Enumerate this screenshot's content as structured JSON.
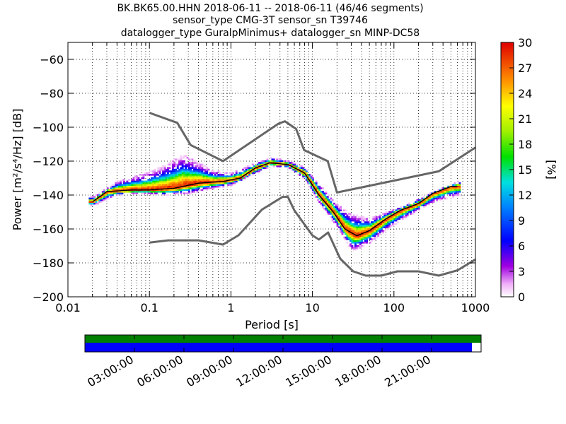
{
  "title_lines": [
    "BK.BK65.00.HHN   2018-06-11 -- 2018-06-11  (46/46 segments)",
    "sensor_type CMG-3T sensor_sn T39746",
    "datalogger_type GuralpMinimus+ datalogger_sn MINP-DC58"
  ],
  "chart_data": {
    "type": "heatmap",
    "xlabel": "Period [s]",
    "ylabel": "Power [m²/s⁴/Hz] [dB]",
    "x_scale": "log",
    "xlim": [
      0.01,
      1000
    ],
    "ylim": [
      -200,
      -50
    ],
    "x_ticks": [
      {
        "value": 0.01,
        "label": "0.01"
      },
      {
        "value": 0.1,
        "label": "0.1"
      },
      {
        "value": 1,
        "label": "1"
      },
      {
        "value": 10,
        "label": "10"
      },
      {
        "value": 100,
        "label": "100"
      },
      {
        "value": 1000,
        "label": "1000"
      }
    ],
    "y_ticks": [
      {
        "value": -60,
        "label": "−60"
      },
      {
        "value": -80,
        "label": "−80"
      },
      {
        "value": -100,
        "label": "−100"
      },
      {
        "value": -120,
        "label": "−120"
      },
      {
        "value": -140,
        "label": "−140"
      },
      {
        "value": -160,
        "label": "−160"
      },
      {
        "value": -180,
        "label": "−180"
      },
      {
        "value": -200,
        "label": "−200"
      }
    ],
    "grid": true,
    "colorbar": {
      "label": "[%]",
      "range": [
        0,
        30
      ],
      "ticks": [
        0,
        3,
        6,
        9,
        12,
        15,
        18,
        21,
        24,
        27,
        30
      ]
    },
    "noise_models": [
      {
        "name": "NHNM",
        "points": [
          [
            0.1,
            -91.5
          ],
          [
            0.22,
            -97.4
          ],
          [
            0.32,
            -110.5
          ],
          [
            0.8,
            -120
          ],
          [
            3.8,
            -98
          ],
          [
            4.6,
            -96.5
          ],
          [
            6.3,
            -101
          ],
          [
            7.9,
            -113.5
          ],
          [
            15.4,
            -120
          ],
          [
            20,
            -138.5
          ],
          [
            354.8,
            -126
          ],
          [
            1000,
            -112
          ]
        ]
      },
      {
        "name": "NLNM",
        "points": [
          [
            0.1,
            -168
          ],
          [
            0.17,
            -166.7
          ],
          [
            0.4,
            -166.7
          ],
          [
            0.8,
            -169.2
          ],
          [
            1.24,
            -163.7
          ],
          [
            2.4,
            -148.6
          ],
          [
            4.3,
            -141.1
          ],
          [
            5.0,
            -141.1
          ],
          [
            6.0,
            -149
          ],
          [
            10,
            -163.8
          ],
          [
            12,
            -166.2
          ],
          [
            15.6,
            -162.1
          ],
          [
            21.9,
            -177.5
          ],
          [
            31.6,
            -185
          ],
          [
            45,
            -187.5
          ],
          [
            70,
            -187.5
          ],
          [
            110,
            -185
          ],
          [
            200,
            -185
          ],
          [
            354.8,
            -187.5
          ],
          [
            600,
            -184.4
          ],
          [
            1000,
            -178
          ]
        ]
      }
    ],
    "psd_bands": [
      {
        "name": "mode",
        "points": [
          [
            0.02,
            -144
          ],
          [
            0.03,
            -138
          ],
          [
            0.06,
            -137
          ],
          [
            0.1,
            -137
          ],
          [
            0.2,
            -136
          ],
          [
            0.4,
            -133
          ],
          [
            0.8,
            -132
          ],
          [
            1.3,
            -130
          ],
          [
            2,
            -124
          ],
          [
            3,
            -121
          ],
          [
            5,
            -122
          ],
          [
            8,
            -127
          ],
          [
            12,
            -140
          ],
          [
            18,
            -150
          ],
          [
            25,
            -160
          ],
          [
            35,
            -164
          ],
          [
            50,
            -161
          ],
          [
            80,
            -154
          ],
          [
            120,
            -149
          ],
          [
            200,
            -145
          ],
          [
            300,
            -139
          ],
          [
            500,
            -135
          ],
          [
            600,
            -135
          ]
        ]
      },
      {
        "name": "upper",
        "points": [
          [
            0.02,
            -141
          ],
          [
            0.04,
            -132
          ],
          [
            0.08,
            -128
          ],
          [
            0.15,
            -123
          ],
          [
            0.25,
            -117
          ],
          [
            0.35,
            -120
          ],
          [
            0.6,
            -126
          ],
          [
            1,
            -127
          ],
          [
            2,
            -121
          ],
          [
            3,
            -118
          ],
          [
            5,
            -120
          ],
          [
            8,
            -124
          ],
          [
            12,
            -134
          ],
          [
            20,
            -146
          ],
          [
            30,
            -152
          ],
          [
            50,
            -154
          ],
          [
            80,
            -150
          ],
          [
            150,
            -145
          ],
          [
            300,
            -138
          ],
          [
            600,
            -132
          ]
        ]
      },
      {
        "name": "lower",
        "points": [
          [
            0.02,
            -146
          ],
          [
            0.04,
            -140
          ],
          [
            0.08,
            -139
          ],
          [
            0.15,
            -140
          ],
          [
            0.3,
            -139
          ],
          [
            0.6,
            -136
          ],
          [
            1,
            -134
          ],
          [
            2,
            -127
          ],
          [
            3,
            -123
          ],
          [
            5,
            -124
          ],
          [
            8,
            -131
          ],
          [
            12,
            -145
          ],
          [
            20,
            -159
          ],
          [
            30,
            -173
          ],
          [
            50,
            -168
          ],
          [
            80,
            -160
          ],
          [
            150,
            -152
          ],
          [
            300,
            -144
          ],
          [
            600,
            -140
          ]
        ]
      }
    ],
    "coverage_bar": {
      "type": "timeline",
      "time_labels": [
        "03:00:00",
        "06:00:00",
        "09:00:00",
        "12:00:00",
        "15:00:00",
        "18:00:00",
        "21:00:00"
      ],
      "data_coverage_fraction": 1.0,
      "psd_coverage_fraction": 0.977,
      "colors": {
        "data": "#008000",
        "psd": "#0000ff"
      }
    }
  }
}
